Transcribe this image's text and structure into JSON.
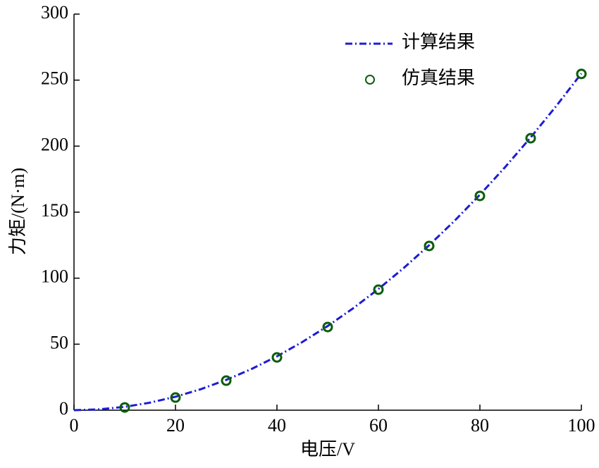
{
  "chart_data": {
    "type": "line",
    "x_label": "电压/V",
    "y_label": "力矩/(N·m)",
    "xlim": [
      0,
      100
    ],
    "xticks": [
      0,
      20,
      40,
      60,
      80,
      100
    ],
    "ylim": [
      0,
      300
    ],
    "yticks": [
      0,
      50,
      100,
      150,
      200,
      250,
      300
    ],
    "grid": false,
    "legend": "upper right",
    "series": [
      {
        "name": "计算结果",
        "type": "line",
        "style": "dashdot",
        "color": "#1c1cd6",
        "x": [
          0,
          5,
          10,
          15,
          20,
          25,
          30,
          35,
          40,
          45,
          50,
          55,
          60,
          65,
          70,
          75,
          80,
          85,
          90,
          95,
          100
        ],
        "values": [
          0,
          0.64,
          2.55,
          5.74,
          10.2,
          15.94,
          22.95,
          31.24,
          40.8,
          51.64,
          63.75,
          77.14,
          91.8,
          107.74,
          124.95,
          143.44,
          163.2,
          184.24,
          206.55,
          230.14,
          255
        ]
      },
      {
        "name": "仿真结果",
        "type": "scatter",
        "color": "#0b5e0b",
        "x": [
          10,
          20,
          30,
          40,
          50,
          60,
          70,
          80,
          90,
          100
        ],
        "values": [
          2.1,
          9.6,
          22.4,
          40,
          63,
          91.3,
          124.4,
          162.3,
          206,
          254.7
        ]
      }
    ]
  }
}
